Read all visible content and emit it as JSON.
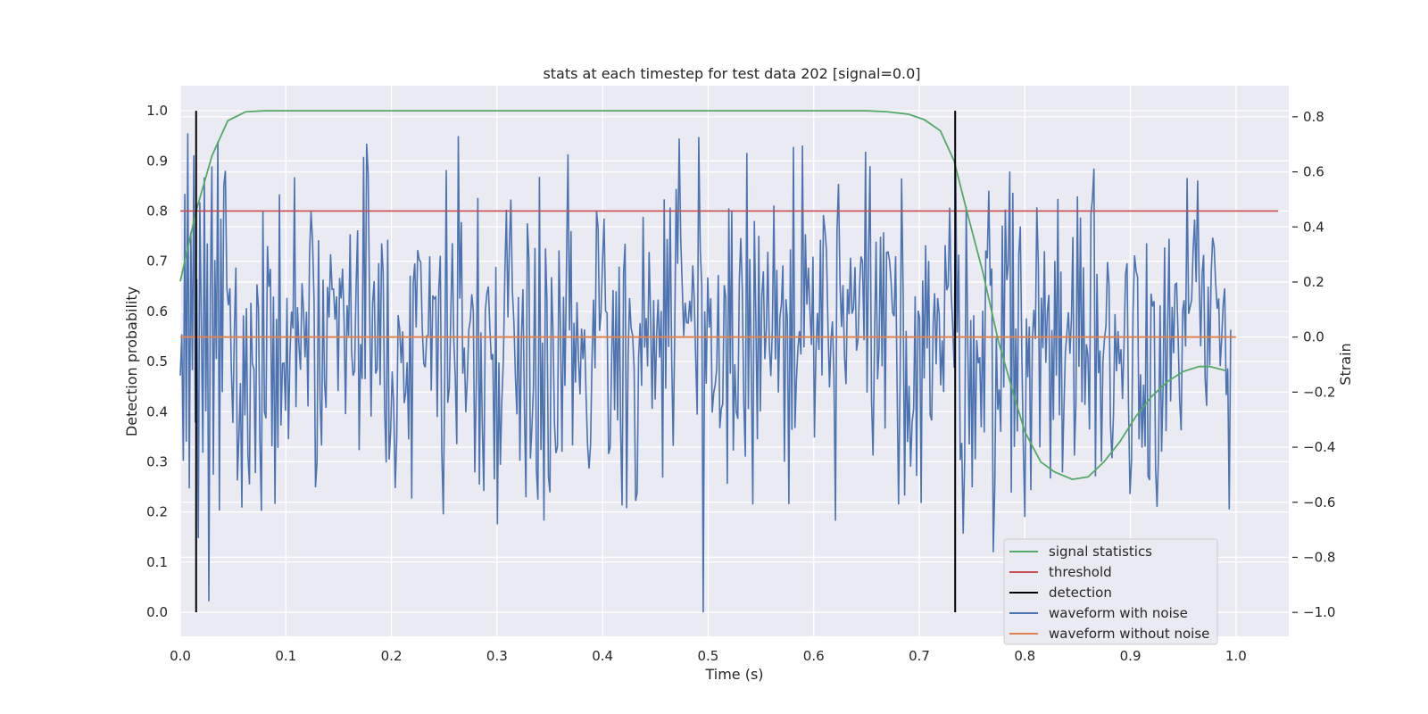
{
  "chart_data": {
    "type": "line",
    "title": "stats at each timestep for test data 202 [signal=0.0]",
    "xlabel": "Time (s)",
    "ylabel": "Detection probability",
    "y2label": "Strain",
    "xlim": [
      0.0,
      1.05
    ],
    "ylim": [
      -0.048,
      1.05
    ],
    "y2lim": [
      -1.087,
      0.913
    ],
    "xticks": [
      "0.0",
      "0.1",
      "0.2",
      "0.3",
      "0.4",
      "0.5",
      "0.6",
      "0.7",
      "0.8",
      "0.9",
      "1.0"
    ],
    "yticks": [
      "0.0",
      "0.1",
      "0.2",
      "0.3",
      "0.4",
      "0.5",
      "0.6",
      "0.7",
      "0.8",
      "0.9",
      "1.0"
    ],
    "y2ticks": [
      "−1.0",
      "−0.8",
      "−0.6",
      "−0.4",
      "−0.2",
      "0.0",
      "0.2",
      "0.4",
      "0.6",
      "0.8"
    ],
    "grid": true,
    "legend_position": "lower-right",
    "colors": {
      "background": "#eaeaf2",
      "grid": "#ffffff",
      "signal_statistics": "#55a868",
      "threshold": "#c44e52",
      "detection": "#000000",
      "waveform_with_noise": "#4c72b0",
      "waveform_without_noise": "#dd8452"
    },
    "series": [
      {
        "name": "signal statistics",
        "axis": "left",
        "x": [
          0.0,
          0.015,
          0.03,
          0.045,
          0.062,
          0.08,
          0.1,
          0.2,
          0.3,
          0.4,
          0.5,
          0.6,
          0.65,
          0.67,
          0.69,
          0.705,
          0.72,
          0.733,
          0.745,
          0.76,
          0.775,
          0.79,
          0.8,
          0.815,
          0.828,
          0.845,
          0.86,
          0.875,
          0.89,
          0.905,
          0.92,
          0.935,
          0.95,
          0.965,
          0.975,
          0.99
        ],
        "y": [
          0.66,
          0.8,
          0.91,
          0.98,
          0.998,
          1.0,
          1.0,
          1.0,
          1.0,
          1.0,
          1.0,
          1.0,
          1.0,
          0.998,
          0.993,
          0.982,
          0.96,
          0.9,
          0.8,
          0.68,
          0.54,
          0.43,
          0.36,
          0.3,
          0.28,
          0.265,
          0.27,
          0.3,
          0.34,
          0.39,
          0.43,
          0.46,
          0.48,
          0.49,
          0.49,
          0.482
        ]
      },
      {
        "name": "threshold",
        "axis": "left",
        "x": [
          0.0,
          1.04
        ],
        "y": [
          0.8,
          0.8
        ]
      },
      {
        "name": "detection",
        "axis": "left",
        "x_positions": [
          0.015,
          0.734
        ],
        "y_range": [
          0.0,
          1.0
        ]
      },
      {
        "name": "waveform with noise",
        "axis": "right",
        "x_range": [
          0.0,
          0.995
        ],
        "points": 700,
        "y_range": [
          -1.0,
          0.83
        ],
        "y_sample": [
          -0.14,
          0.01,
          -0.45,
          0.52,
          -0.38,
          0.74,
          -0.55,
          0.38,
          -0.12,
          0.66,
          -0.31,
          0.21,
          -0.73,
          0.49,
          0.05,
          -0.42,
          0.58,
          -0.27,
          0.34,
          -0.96,
          0.17,
          0.62,
          -0.5,
          0.28,
          -0.08,
          0.71,
          -0.63,
          0.43,
          -0.2,
          0.55
        ]
      },
      {
        "name": "waveform without noise",
        "axis": "right",
        "x": [
          0.0,
          1.0
        ],
        "y": [
          0.0,
          0.0
        ]
      }
    ]
  }
}
